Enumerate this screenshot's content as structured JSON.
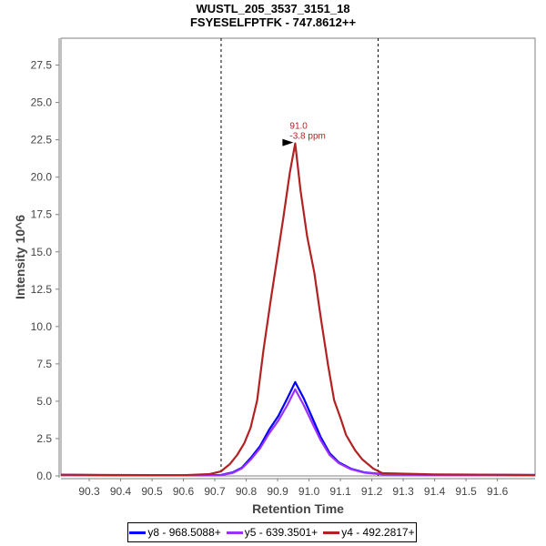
{
  "chart_data": {
    "type": "line",
    "title": "WUSTL_205_3537_3151_18",
    "subtitle": "FSYESELFPTFK - 747.8612++",
    "xlabel": "Retention Time",
    "ylabel": "Intensity 10^6",
    "xlim": [
      90.21,
      91.72
    ],
    "ylim": [
      0,
      29.3
    ],
    "xticks": [
      "90.3",
      "90.4",
      "90.5",
      "90.6",
      "90.7",
      "90.8",
      "90.9",
      "91.0",
      "91.1",
      "91.2",
      "91.3",
      "91.4",
      "91.5",
      "91.6"
    ],
    "yticks": [
      "0.0",
      "2.5",
      "5.0",
      "7.5",
      "10.0",
      "12.5",
      "15.0",
      "17.5",
      "20.0",
      "22.5",
      "25.0",
      "27.5"
    ],
    "grid": false,
    "legend_position": "bottom",
    "integration_boundaries": [
      90.72,
      91.22
    ],
    "annotation": {
      "x": 90.956,
      "y": 22.26,
      "line1": "91.0",
      "line2": "-3.8 ppm",
      "color": "#b22222"
    },
    "series": [
      {
        "name": "y8 - 968.5088+",
        "color": "#0000ff",
        "x": [
          90.21,
          90.4,
          90.6,
          90.719,
          90.757,
          90.786,
          90.815,
          90.844,
          90.873,
          90.902,
          90.931,
          90.956,
          90.983,
          91.009,
          91.037,
          91.066,
          91.095,
          91.133,
          91.176,
          91.234,
          91.4,
          91.6,
          91.72
        ],
        "y": [
          0.08,
          0.05,
          0.04,
          0.06,
          0.24,
          0.55,
          1.22,
          2.0,
          3.1,
          4.0,
          5.2,
          6.28,
          5.2,
          3.96,
          2.62,
          1.52,
          0.91,
          0.49,
          0.24,
          0.12,
          0.08,
          0.07,
          0.06
        ]
      },
      {
        "name": "y5 - 639.3501+",
        "color": "#9b30ff",
        "x": [
          90.21,
          90.4,
          90.6,
          90.719,
          90.757,
          90.786,
          90.815,
          90.844,
          90.873,
          90.902,
          90.931,
          90.956,
          90.983,
          91.009,
          91.037,
          91.066,
          91.095,
          91.133,
          91.176,
          91.234,
          91.4,
          91.6,
          91.72
        ],
        "y": [
          0.06,
          0.05,
          0.04,
          0.05,
          0.2,
          0.5,
          1.1,
          1.85,
          2.85,
          3.7,
          4.75,
          5.79,
          4.75,
          3.6,
          2.4,
          1.4,
          0.85,
          0.45,
          0.22,
          0.1,
          0.07,
          0.06,
          0.05
        ]
      },
      {
        "name": "y4 - 492.2817+",
        "color": "#b22222",
        "x": [
          90.21,
          90.4,
          90.6,
          90.684,
          90.719,
          90.748,
          90.771,
          90.794,
          90.814,
          90.835,
          90.855,
          90.878,
          90.898,
          90.918,
          90.939,
          90.956,
          90.973,
          90.994,
          91.017,
          91.037,
          91.06,
          91.08,
          91.101,
          91.118,
          91.147,
          91.17,
          91.205,
          91.234,
          91.4,
          91.6,
          91.72
        ],
        "y": [
          0.08,
          0.06,
          0.05,
          0.12,
          0.3,
          0.79,
          1.4,
          2.2,
          3.23,
          5.06,
          8.41,
          11.77,
          14.51,
          17.26,
          20.3,
          22.26,
          19.09,
          16.04,
          13.6,
          10.67,
          7.5,
          5.06,
          3.84,
          2.74,
          1.71,
          1.1,
          0.49,
          0.18,
          0.1,
          0.08,
          0.06
        ]
      }
    ]
  }
}
